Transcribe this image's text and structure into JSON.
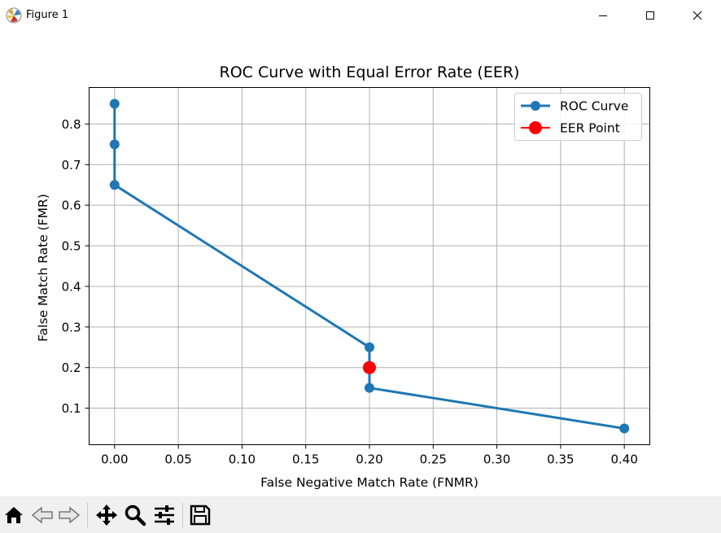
{
  "window": {
    "title": "Figure 1",
    "icons": {
      "app": "matplotlib-logo-icon",
      "minimize": "minimize-icon",
      "maximize": "maximize-icon",
      "close": "close-icon"
    }
  },
  "toolbar": {
    "buttons": [
      {
        "name": "home-button",
        "icon": "home-icon"
      },
      {
        "name": "back-button",
        "icon": "back-arrow-icon"
      },
      {
        "name": "forward-button",
        "icon": "forward-arrow-icon"
      },
      {
        "name": "pan-button",
        "icon": "move-icon"
      },
      {
        "name": "zoom-button",
        "icon": "zoom-icon"
      },
      {
        "name": "configure-subplots-button",
        "icon": "sliders-icon"
      },
      {
        "name": "save-button",
        "icon": "save-icon"
      }
    ]
  },
  "colors": {
    "series": "#1f77b4",
    "eer": "#ff0000",
    "grid": "#b0b0b0"
  },
  "chart_data": {
    "type": "line",
    "title": "ROC Curve with Equal Error Rate (EER)",
    "xlabel": "False Negative Match Rate (FNMR)",
    "ylabel": "False Match Rate (FMR)",
    "xlim": [
      -0.02,
      0.42
    ],
    "ylim": [
      0.01,
      0.89
    ],
    "grid": true,
    "legend_position": "top-right",
    "xticks": [
      0.0,
      0.05,
      0.1,
      0.15,
      0.2,
      0.25,
      0.3,
      0.35,
      0.4
    ],
    "xtick_labels": [
      "0.00",
      "0.05",
      "0.10",
      "0.15",
      "0.20",
      "0.25",
      "0.30",
      "0.35",
      "0.40"
    ],
    "yticks": [
      0.1,
      0.2,
      0.3,
      0.4,
      0.5,
      0.6,
      0.7,
      0.8
    ],
    "ytick_labels": [
      "0.1",
      "0.2",
      "0.3",
      "0.4",
      "0.5",
      "0.6",
      "0.7",
      "0.8"
    ],
    "series": [
      {
        "name": "ROC Curve",
        "marker": "circle",
        "color": "#1f77b4",
        "x": [
          0.0,
          0.0,
          0.0,
          0.2,
          0.2,
          0.4
        ],
        "y": [
          0.85,
          0.75,
          0.65,
          0.25,
          0.15,
          0.05
        ]
      },
      {
        "name": "EER Point",
        "marker": "circle",
        "color": "#ff0000",
        "x": [
          0.2
        ],
        "y": [
          0.2
        ]
      }
    ]
  }
}
